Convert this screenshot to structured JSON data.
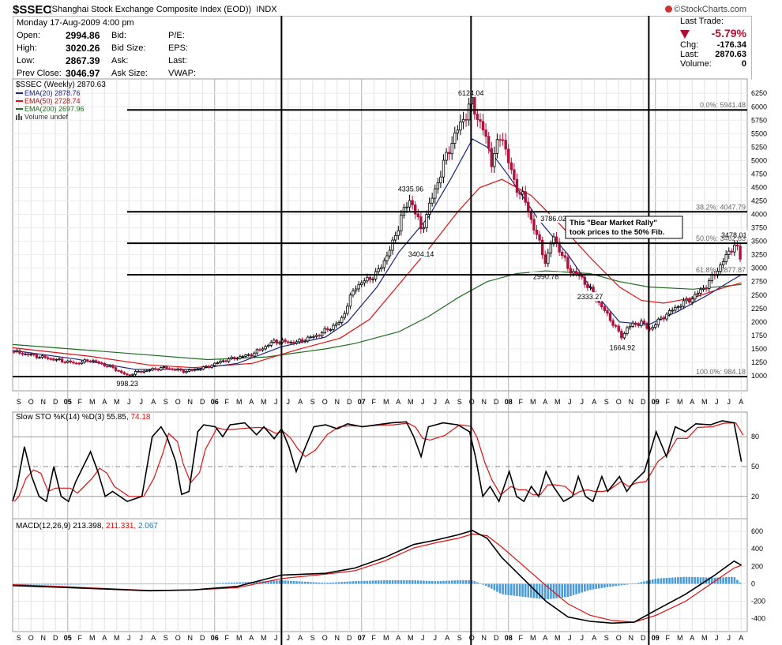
{
  "header": {
    "symbol": "$SSEC",
    "name": "(Shanghai Stock Exchange Composite Index (EOD))",
    "exchange": "INDX",
    "brand": "©StockCharts.com",
    "date": "Monday  17-Aug-2009  4:00 pm",
    "quotes": [
      {
        "label": "Open:",
        "value": "2994.86"
      },
      {
        "label": "High:",
        "value": "3020.26"
      },
      {
        "label": "Low:",
        "value": "2867.39"
      },
      {
        "label": "Prev Close:",
        "value": "3046.97"
      }
    ],
    "bid_labels": [
      "Bid:",
      "Bid Size:",
      "Ask:",
      "Ask Size:"
    ],
    "other_labels": [
      "P/E:",
      "EPS:",
      "Last:",
      "VWAP:"
    ],
    "last_trade": {
      "title": "Last Trade:",
      "pct": "-5.79%",
      "chg_label": "Chg:",
      "chg": "-176.34",
      "last_label": "Last:",
      "last": "2870.63",
      "vol_label": "Volume:",
      "volume": "0"
    }
  },
  "months": [
    "S",
    "O",
    "N",
    "D",
    "05",
    "F",
    "M",
    "A",
    "M",
    "J",
    "J",
    "A",
    "S",
    "O",
    "N",
    "D",
    "06",
    "F",
    "M",
    "A",
    "M",
    "J",
    "J",
    "A",
    "S",
    "O",
    "N",
    "D",
    "07",
    "F",
    "M",
    "A",
    "M",
    "J",
    "J",
    "A",
    "S",
    "O",
    "N",
    "D",
    "08",
    "F",
    "M",
    "A",
    "M",
    "J",
    "J",
    "A",
    "S",
    "O",
    "N",
    "D",
    "09",
    "F",
    "M",
    "A",
    "M",
    "J",
    "J",
    "A"
  ],
  "year_months": [
    "05",
    "06",
    "07",
    "08",
    "09"
  ],
  "colors": {
    "ema20": "#1a237e",
    "ema50": "#dd1111",
    "ema200": "#1f6d1f",
    "up": "#000000",
    "down": "#b0103a",
    "macd_hist": "#4a9bd6",
    "macd_sig": "#dd1111",
    "macd_val3": "#1f77b4"
  },
  "chart_data": [
    {
      "type": "candlestick",
      "title": "$SSEC (Weekly) 2870.63",
      "legend": [
        {
          "name": "EMA(20)",
          "value": "2878.76"
        },
        {
          "name": "EMA(50)",
          "value": "2728.74"
        },
        {
          "name": "EMA(200)",
          "value": "2697.96"
        },
        {
          "name": "Volume undef",
          "value": ""
        }
      ],
      "ylim": [
        750,
        6400
      ],
      "yticks": [
        1000,
        1250,
        1500,
        1750,
        2000,
        2250,
        2500,
        2750,
        3000,
        3250,
        3500,
        3750,
        4000,
        4250,
        4500,
        4750,
        5000,
        5250,
        5500,
        5750,
        6000,
        6250
      ],
      "xlim": [
        2004.67,
        2009.67
      ],
      "anchors": [
        [
          2004.67,
          1450
        ],
        [
          2004.9,
          1330
        ],
        [
          2005.1,
          1230
        ],
        [
          2005.2,
          1290
        ],
        [
          2005.35,
          1150
        ],
        [
          2005.45,
          1000
        ],
        [
          2005.5,
          1060
        ],
        [
          2005.7,
          1150
        ],
        [
          2005.85,
          1080
        ],
        [
          2005.99,
          1160
        ],
        [
          2006.1,
          1280
        ],
        [
          2006.3,
          1400
        ],
        [
          2006.45,
          1640
        ],
        [
          2006.6,
          1620
        ],
        [
          2006.75,
          1760
        ],
        [
          2006.9,
          2000
        ],
        [
          2007.0,
          2650
        ],
        [
          2007.15,
          2900
        ],
        [
          2007.25,
          3400
        ],
        [
          2007.32,
          4000
        ],
        [
          2007.38,
          4300
        ],
        [
          2007.45,
          3700
        ],
        [
          2007.55,
          4500
        ],
        [
          2007.65,
          5300
        ],
        [
          2007.76,
          5900
        ],
        [
          2007.79,
          6080
        ],
        [
          2007.87,
          5600
        ],
        [
          2007.93,
          5000
        ],
        [
          2008.0,
          5500
        ],
        [
          2008.08,
          4600
        ],
        [
          2008.15,
          4300
        ],
        [
          2008.25,
          3500
        ],
        [
          2008.3,
          3100
        ],
        [
          2008.35,
          3600
        ],
        [
          2008.45,
          3000
        ],
        [
          2008.55,
          2800
        ],
        [
          2008.65,
          2400
        ],
        [
          2008.75,
          2000
        ],
        [
          2008.82,
          1700
        ],
        [
          2008.85,
          1900
        ],
        [
          2008.95,
          2000
        ],
        [
          2009.0,
          1850
        ],
        [
          2009.1,
          2100
        ],
        [
          2009.2,
          2300
        ],
        [
          2009.3,
          2450
        ],
        [
          2009.4,
          2700
        ],
        [
          2009.5,
          3100
        ],
        [
          2009.58,
          3450
        ],
        [
          2009.62,
          3250
        ],
        [
          2009.63,
          2870
        ]
      ],
      "ema20": [
        [
          2004.67,
          1470
        ],
        [
          2005.1,
          1310
        ],
        [
          2005.5,
          1120
        ],
        [
          2005.9,
          1120
        ],
        [
          2006.2,
          1230
        ],
        [
          2006.5,
          1540
        ],
        [
          2006.8,
          1720
        ],
        [
          2006.95,
          2000
        ],
        [
          2007.15,
          2650
        ],
        [
          2007.3,
          3300
        ],
        [
          2007.5,
          3950
        ],
        [
          2007.65,
          4650
        ],
        [
          2007.8,
          5400
        ],
        [
          2007.9,
          5250
        ],
        [
          2008.05,
          4700
        ],
        [
          2008.25,
          3900
        ],
        [
          2008.45,
          3250
        ],
        [
          2008.6,
          2650
        ],
        [
          2008.8,
          2000
        ],
        [
          2009.0,
          1950
        ],
        [
          2009.2,
          2200
        ],
        [
          2009.4,
          2500
        ],
        [
          2009.55,
          2750
        ],
        [
          2009.63,
          2878
        ]
      ],
      "ema50": [
        [
          2004.67,
          1520
        ],
        [
          2005.2,
          1360
        ],
        [
          2005.6,
          1200
        ],
        [
          2005.9,
          1150
        ],
        [
          2006.3,
          1230
        ],
        [
          2006.6,
          1480
        ],
        [
          2006.9,
          1700
        ],
        [
          2007.1,
          2050
        ],
        [
          2007.3,
          2700
        ],
        [
          2007.5,
          3350
        ],
        [
          2007.7,
          4050
        ],
        [
          2007.85,
          4500
        ],
        [
          2008.0,
          4650
        ],
        [
          2008.2,
          4350
        ],
        [
          2008.4,
          3800
        ],
        [
          2008.6,
          3200
        ],
        [
          2008.8,
          2650
        ],
        [
          2008.95,
          2400
        ],
        [
          2009.1,
          2350
        ],
        [
          2009.3,
          2450
        ],
        [
          2009.5,
          2630
        ],
        [
          2009.63,
          2728
        ]
      ],
      "ema200": [
        [
          2004.67,
          1580
        ],
        [
          2005.3,
          1450
        ],
        [
          2006.0,
          1300
        ],
        [
          2006.4,
          1350
        ],
        [
          2006.8,
          1500
        ],
        [
          2007.0,
          1600
        ],
        [
          2007.3,
          1820
        ],
        [
          2007.5,
          2100
        ],
        [
          2007.7,
          2450
        ],
        [
          2007.9,
          2750
        ],
        [
          2008.1,
          2900
        ],
        [
          2008.3,
          2950
        ],
        [
          2008.6,
          2900
        ],
        [
          2008.8,
          2750
        ],
        [
          2009.0,
          2650
        ],
        [
          2009.3,
          2610
        ],
        [
          2009.5,
          2660
        ],
        [
          2009.63,
          2698
        ]
      ],
      "price_labels": [
        {
          "text": "6124.04",
          "x": 2007.79,
          "y": 6124,
          "pos": "above"
        },
        {
          "text": "4335.96",
          "x": 2007.38,
          "y": 4335,
          "pos": "above"
        },
        {
          "text": "3404.14",
          "x": 2007.45,
          "y": 3404,
          "pos": "below"
        },
        {
          "text": "3786.02",
          "x": 2008.35,
          "y": 3786,
          "pos": "above"
        },
        {
          "text": "2990.78",
          "x": 2008.3,
          "y": 2990,
          "pos": "below"
        },
        {
          "text": "2333.27",
          "x": 2008.6,
          "y": 2333,
          "pos": "above"
        },
        {
          "text": "1664.92",
          "x": 2008.82,
          "y": 1664,
          "pos": "below"
        },
        {
          "text": "998.23",
          "x": 2005.45,
          "y": 998,
          "pos": "below"
        },
        {
          "text": "3478.01",
          "x": 2009.58,
          "y": 3478,
          "pos": "above"
        }
      ],
      "fib_lines": [
        {
          "label": "0.0%: 5941.48",
          "value": 5941.48
        },
        {
          "label": "38.2%: 4047.79",
          "value": 4047.79
        },
        {
          "label": "50.0%: 3462.83",
          "value": 3462.83
        },
        {
          "label": "61.8%: 2877.87",
          "value": 2877.87
        },
        {
          "label": "100.0%: 984.18",
          "value": 984.18
        }
      ],
      "annotation": [
        "This \"Bear Market Rally\"",
        "took prices to the 50% Fib."
      ],
      "vertical_markers": [
        2006.5,
        2007.79,
        2009.0
      ]
    },
    {
      "type": "line",
      "title": "Slow STO %K(14) %D(3) 55.85, 74.18",
      "title_main": "Slow STO %K(14) %D(3) 55.85,",
      "title_d": "74.18",
      "ylim": [
        0,
        100
      ],
      "yticks": [
        20,
        50,
        80
      ],
      "k": [
        [
          2004.67,
          15
        ],
        [
          2004.7,
          30
        ],
        [
          2004.75,
          70
        ],
        [
          2004.8,
          40
        ],
        [
          2004.85,
          20
        ],
        [
          2004.9,
          15
        ],
        [
          2004.95,
          50
        ],
        [
          2005.0,
          20
        ],
        [
          2005.05,
          15
        ],
        [
          2005.1,
          35
        ],
        [
          2005.2,
          65
        ],
        [
          2005.25,
          45
        ],
        [
          2005.3,
          20
        ],
        [
          2005.35,
          25
        ],
        [
          2005.45,
          15
        ],
        [
          2005.55,
          20
        ],
        [
          2005.62,
          80
        ],
        [
          2005.68,
          90
        ],
        [
          2005.72,
          80
        ],
        [
          2005.78,
          55
        ],
        [
          2005.82,
          22
        ],
        [
          2005.87,
          25
        ],
        [
          2005.93,
          85
        ],
        [
          2005.97,
          92
        ],
        [
          2006.05,
          90
        ],
        [
          2006.1,
          80
        ],
        [
          2006.15,
          92
        ],
        [
          2006.25,
          94
        ],
        [
          2006.33,
          82
        ],
        [
          2006.38,
          90
        ],
        [
          2006.45,
          78
        ],
        [
          2006.5,
          88
        ],
        [
          2006.55,
          70
        ],
        [
          2006.6,
          45
        ],
        [
          2006.65,
          65
        ],
        [
          2006.72,
          90
        ],
        [
          2006.8,
          92
        ],
        [
          2006.88,
          88
        ],
        [
          2006.95,
          93
        ],
        [
          2007.05,
          90
        ],
        [
          2007.15,
          92
        ],
        [
          2007.25,
          94
        ],
        [
          2007.35,
          95
        ],
        [
          2007.4,
          80
        ],
        [
          2007.45,
          60
        ],
        [
          2007.5,
          90
        ],
        [
          2007.6,
          94
        ],
        [
          2007.7,
          92
        ],
        [
          2007.78,
          85
        ],
        [
          2007.82,
          60
        ],
        [
          2007.87,
          20
        ],
        [
          2007.92,
          30
        ],
        [
          2007.98,
          15
        ],
        [
          2008.05,
          45
        ],
        [
          2008.1,
          20
        ],
        [
          2008.15,
          15
        ],
        [
          2008.2,
          30
        ],
        [
          2008.25,
          20
        ],
        [
          2008.3,
          45
        ],
        [
          2008.35,
          30
        ],
        [
          2008.42,
          15
        ],
        [
          2008.48,
          20
        ],
        [
          2008.52,
          40
        ],
        [
          2008.57,
          20
        ],
        [
          2008.62,
          15
        ],
        [
          2008.68,
          40
        ],
        [
          2008.72,
          25
        ],
        [
          2008.8,
          40
        ],
        [
          2008.85,
          25
        ],
        [
          2008.9,
          35
        ],
        [
          2008.97,
          45
        ],
        [
          2009.05,
          85
        ],
        [
          2009.12,
          60
        ],
        [
          2009.18,
          90
        ],
        [
          2009.25,
          85
        ],
        [
          2009.32,
          93
        ],
        [
          2009.42,
          92
        ],
        [
          2009.5,
          96
        ],
        [
          2009.58,
          94
        ],
        [
          2009.63,
          55
        ]
      ]
    },
    {
      "type": "line",
      "title": "MACD(12,26,9) 213.398, 211.331, 2.067",
      "values_text": [
        "213.398,",
        "211.331,",
        "2.067"
      ],
      "ylim": [
        -520,
        700
      ],
      "yticks": [
        -400,
        -200,
        0,
        200,
        400,
        600
      ],
      "macd": [
        [
          2004.67,
          -20
        ],
        [
          2005.0,
          -40
        ],
        [
          2005.3,
          -60
        ],
        [
          2005.6,
          -80
        ],
        [
          2005.9,
          -70
        ],
        [
          2006.2,
          -30
        ],
        [
          2006.5,
          100
        ],
        [
          2006.8,
          120
        ],
        [
          2007.0,
          180
        ],
        [
          2007.2,
          300
        ],
        [
          2007.4,
          450
        ],
        [
          2007.55,
          500
        ],
        [
          2007.7,
          560
        ],
        [
          2007.8,
          610
        ],
        [
          2007.9,
          520
        ],
        [
          2008.0,
          300
        ],
        [
          2008.15,
          50
        ],
        [
          2008.3,
          -200
        ],
        [
          2008.45,
          -380
        ],
        [
          2008.6,
          -430
        ],
        [
          2008.75,
          -450
        ],
        [
          2008.9,
          -440
        ],
        [
          2009.05,
          -300
        ],
        [
          2009.25,
          -120
        ],
        [
          2009.45,
          100
        ],
        [
          2009.58,
          260
        ],
        [
          2009.63,
          213
        ]
      ],
      "signal": [
        [
          2004.67,
          -10
        ],
        [
          2005.0,
          -30
        ],
        [
          2005.3,
          -55
        ],
        [
          2005.6,
          -75
        ],
        [
          2005.9,
          -70
        ],
        [
          2006.2,
          -45
        ],
        [
          2006.5,
          60
        ],
        [
          2006.8,
          110
        ],
        [
          2007.0,
          150
        ],
        [
          2007.2,
          260
        ],
        [
          2007.4,
          410
        ],
        [
          2007.55,
          470
        ],
        [
          2007.7,
          520
        ],
        [
          2007.8,
          570
        ],
        [
          2007.9,
          550
        ],
        [
          2008.0,
          420
        ],
        [
          2008.15,
          200
        ],
        [
          2008.3,
          -20
        ],
        [
          2008.45,
          -230
        ],
        [
          2008.6,
          -360
        ],
        [
          2008.75,
          -420
        ],
        [
          2008.9,
          -440
        ],
        [
          2009.05,
          -360
        ],
        [
          2009.25,
          -200
        ],
        [
          2009.45,
          30
        ],
        [
          2009.58,
          180
        ],
        [
          2009.63,
          211
        ]
      ]
    }
  ]
}
